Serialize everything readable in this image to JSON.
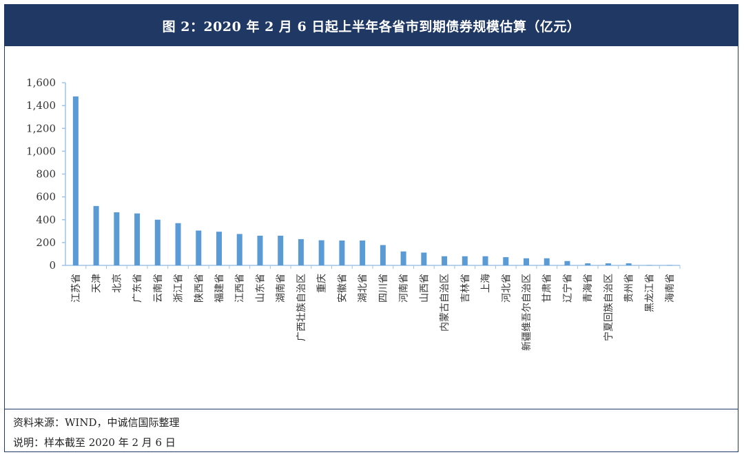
{
  "title": "图 2：2020 年 2 月 6 日起上半年各省市到期债券规模估算（亿元）",
  "footer": {
    "source": "资料来源：WIND，中诚信国际整理",
    "note": "说明：样本截至 2020 年 2 月 6 日"
  },
  "chart_data": {
    "type": "bar",
    "categories": [
      "江苏省",
      "天津",
      "北京",
      "广东省",
      "云南省",
      "浙江省",
      "陕西省",
      "福建省",
      "江西省",
      "山东省",
      "湖南省",
      "广西壮族自治区",
      "重庆",
      "安徽省",
      "湖北省",
      "四川省",
      "河南省",
      "山西省",
      "内蒙古自治区",
      "吉林省",
      "上海",
      "河北省",
      "新疆维吾尔自治区",
      "甘肃省",
      "辽宁省",
      "青海省",
      "宁夏回族自治区",
      "贵州省",
      "黑龙江省",
      "海南省"
    ],
    "values": [
      1480,
      520,
      465,
      455,
      400,
      370,
      305,
      295,
      275,
      260,
      260,
      230,
      220,
      218,
      218,
      178,
      122,
      112,
      80,
      80,
      80,
      72,
      62,
      62,
      38,
      18,
      18,
      18,
      2,
      2
    ],
    "ylim": [
      0,
      1600
    ],
    "yticks": [
      0,
      200,
      400,
      600,
      800,
      1000,
      1200,
      1400,
      1600
    ],
    "ytick_labels": [
      "0",
      "200",
      "400",
      "600",
      "800",
      "1,000",
      "1,200",
      "1,400",
      "1,600"
    ],
    "bar_color": "#5b9bd5",
    "axis_color": "#9dc3e6",
    "grid": false,
    "legend": "none"
  }
}
